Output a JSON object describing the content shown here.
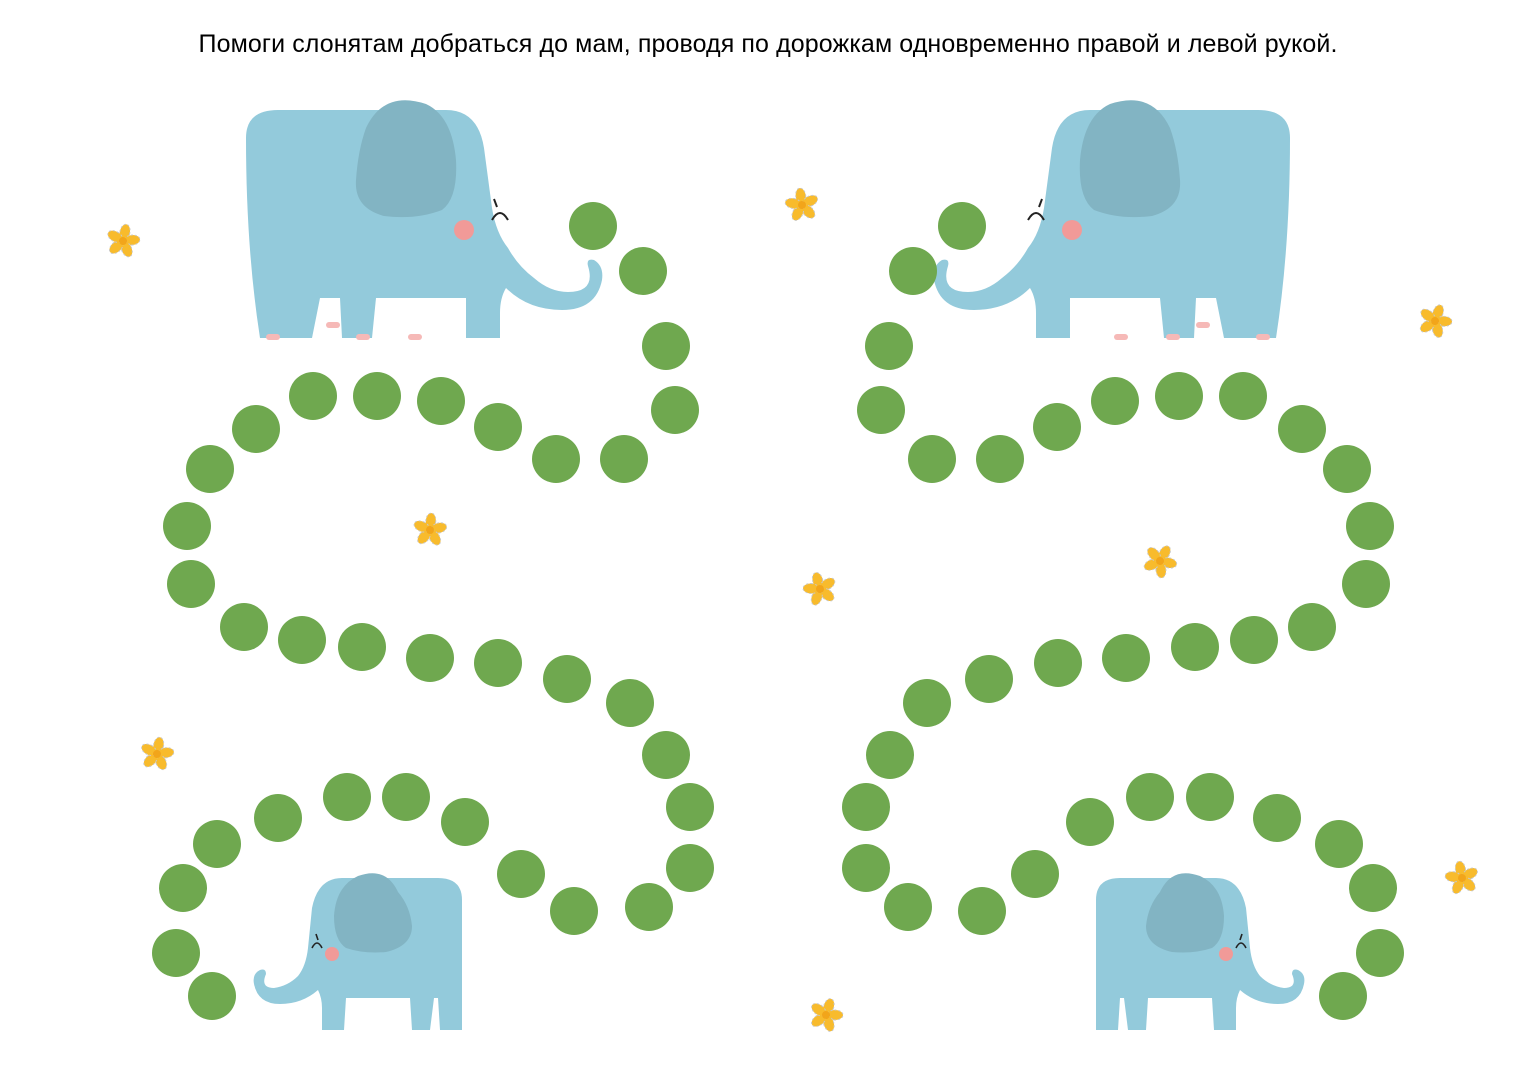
{
  "instruction": "Помоги слонятам добраться до мам, проводя по дорожкам одновременно правой и левой рукой.",
  "colors": {
    "dot": "#6fa84f",
    "elephant_body": "#93cadb",
    "elephant_ear": "#82b4c3",
    "cheek": "#f19a98",
    "toe": "#f6b9b7",
    "flower": "#f8bb2c",
    "flower_outline": "#c7c7c7"
  },
  "icons": {
    "elephant": "elephant-icon",
    "flower": "flower-icon",
    "dot": "path-dot"
  }
}
